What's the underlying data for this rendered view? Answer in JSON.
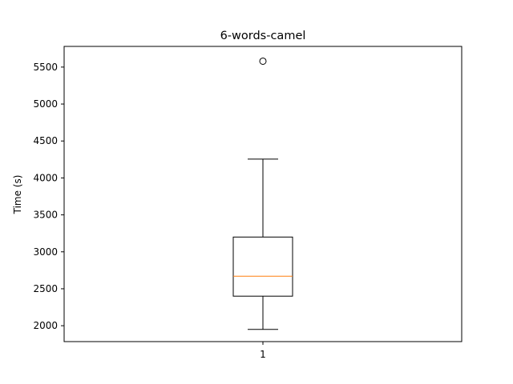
{
  "chart_data": {
    "type": "box",
    "title": "6-words-camel",
    "xlabel": "",
    "ylabel": "Time (s)",
    "ylim": [
      1785,
      5780
    ],
    "yticks": [
      2000,
      2500,
      3000,
      3500,
      4000,
      4500,
      5000,
      5500
    ],
    "categories": [
      "1"
    ],
    "boxes": [
      {
        "category": "1",
        "whisker_low": 1950,
        "q1": 2400,
        "median": 2670,
        "q3": 3200,
        "whisker_high": 4255,
        "outliers": [
          5580
        ]
      }
    ],
    "grid": false,
    "colors": {
      "box": "#000000",
      "median": "#ff7f0e",
      "outlier": "#000000"
    }
  }
}
